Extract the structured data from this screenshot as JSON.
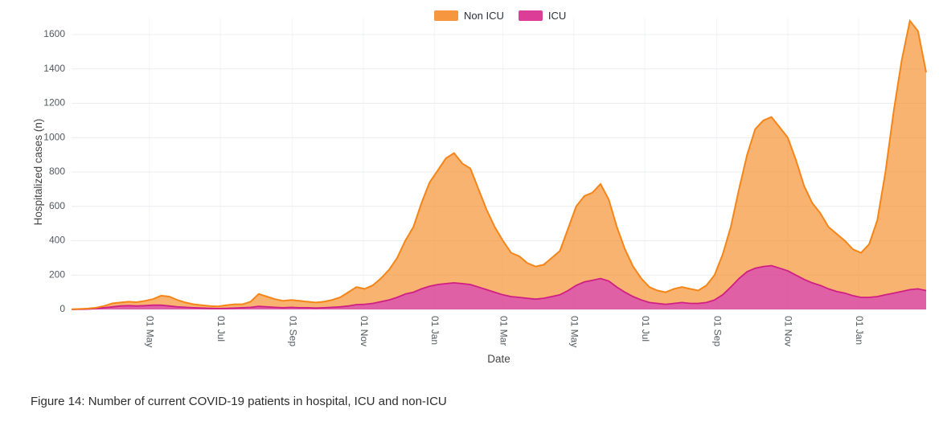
{
  "figure": {
    "caption": "Figure 14: Number of current COVID-19 patients in hospital, ICU and non-ICU"
  },
  "chart_data": {
    "type": "area",
    "stacked": true,
    "title": "",
    "xlabel": "Date",
    "ylabel": "Hospitalized cases (n)",
    "ylim": [
      0,
      1600
    ],
    "yticks": [
      0,
      200,
      400,
      600,
      800,
      1000,
      1200,
      1400,
      1600
    ],
    "grid": true,
    "legend_position": "top-center",
    "axis_text_color": "#53585f",
    "axis_label_color": "#444444",
    "grid_color": "#eaecef",
    "vgrid_color": "#f2f3f5",
    "xticks": [
      {
        "date": "2020-05-01",
        "label": "01 May"
      },
      {
        "date": "2020-07-01",
        "label": "01 Jul"
      },
      {
        "date": "2020-09-01",
        "label": "01 Sep"
      },
      {
        "date": "2020-11-01",
        "label": "01 Nov"
      },
      {
        "date": "2021-01-01",
        "label": "01 Jan"
      },
      {
        "date": "2021-03-01",
        "label": "01 Mar"
      },
      {
        "date": "2021-05-01",
        "label": "01 May"
      },
      {
        "date": "2021-07-01",
        "label": "01 Jul"
      },
      {
        "date": "2021-09-01",
        "label": "01 Sep"
      },
      {
        "date": "2021-11-01",
        "label": "01 Nov"
      },
      {
        "date": "2022-01-01",
        "label": "01 Jan"
      }
    ],
    "x": [
      "2020-02-24",
      "2020-03-02",
      "2020-03-09",
      "2020-03-16",
      "2020-03-23",
      "2020-03-30",
      "2020-04-06",
      "2020-04-13",
      "2020-04-20",
      "2020-04-27",
      "2020-05-04",
      "2020-05-11",
      "2020-05-18",
      "2020-05-25",
      "2020-06-01",
      "2020-06-08",
      "2020-06-15",
      "2020-06-22",
      "2020-06-29",
      "2020-07-06",
      "2020-07-13",
      "2020-07-20",
      "2020-07-27",
      "2020-08-03",
      "2020-08-10",
      "2020-08-17",
      "2020-08-24",
      "2020-08-31",
      "2020-09-07",
      "2020-09-14",
      "2020-09-21",
      "2020-09-28",
      "2020-10-05",
      "2020-10-12",
      "2020-10-19",
      "2020-10-26",
      "2020-11-02",
      "2020-11-09",
      "2020-11-16",
      "2020-11-23",
      "2020-11-30",
      "2020-12-07",
      "2020-12-14",
      "2020-12-21",
      "2020-12-28",
      "2021-01-04",
      "2021-01-11",
      "2021-01-18",
      "2021-01-25",
      "2021-02-01",
      "2021-02-08",
      "2021-02-15",
      "2021-02-22",
      "2021-03-01",
      "2021-03-08",
      "2021-03-15",
      "2021-03-22",
      "2021-03-29",
      "2021-04-05",
      "2021-04-12",
      "2021-04-19",
      "2021-04-26",
      "2021-05-03",
      "2021-05-10",
      "2021-05-17",
      "2021-05-24",
      "2021-05-31",
      "2021-06-07",
      "2021-06-14",
      "2021-06-21",
      "2021-06-28",
      "2021-07-05",
      "2021-07-12",
      "2021-07-19",
      "2021-07-26",
      "2021-08-02",
      "2021-08-09",
      "2021-08-16",
      "2021-08-23",
      "2021-08-30",
      "2021-09-06",
      "2021-09-13",
      "2021-09-20",
      "2021-09-27",
      "2021-10-04",
      "2021-10-11",
      "2021-10-18",
      "2021-10-25",
      "2021-11-01",
      "2021-11-08",
      "2021-11-15",
      "2021-11-22",
      "2021-11-29",
      "2021-12-06",
      "2021-12-13",
      "2021-12-20",
      "2021-12-27",
      "2022-01-03",
      "2022-01-10",
      "2022-01-17",
      "2022-01-24",
      "2022-01-31",
      "2022-02-07",
      "2022-02-14",
      "2022-02-21",
      "2022-02-28"
    ],
    "series": [
      {
        "name": "Non ICU",
        "line_color": "#f58518",
        "fill_color": "rgba(245,133,24,0.62)",
        "legend_color": "#f6963f",
        "values": [
          1,
          2,
          3,
          5,
          10,
          20,
          20,
          23,
          22,
          28,
          35,
          55,
          55,
          40,
          28,
          20,
          17,
          14,
          13,
          19,
          22,
          20,
          33,
          72,
          60,
          48,
          40,
          43,
          40,
          35,
          32,
          35,
          43,
          55,
          80,
          102,
          90,
          105,
          135,
          175,
          230,
          310,
          380,
          500,
          605,
          665,
          730,
          755,
          700,
          675,
          570,
          465,
          380,
          315,
          255,
          240,
          205,
          190,
          195,
          225,
          255,
          360,
          460,
          500,
          510,
          550,
          475,
          350,
          250,
          175,
          125,
          90,
          75,
          70,
          85,
          90,
          85,
          75,
          100,
          145,
          235,
          350,
          520,
          680,
          810,
          850,
          865,
          820,
          775,
          670,
          545,
          465,
          420,
          360,
          335,
          305,
          270,
          260,
          310,
          445,
          715,
          1055,
          1345,
          1565,
          1500,
          1270
        ]
      },
      {
        "name": "ICU",
        "line_color": "#d01f84",
        "fill_color": "rgba(216,56,142,0.80)",
        "legend_color": "#dc3e97",
        "values": [
          0,
          1,
          2,
          5,
          10,
          15,
          20,
          22,
          20,
          22,
          25,
          25,
          20,
          15,
          12,
          10,
          8,
          6,
          5,
          6,
          8,
          10,
          12,
          18,
          15,
          12,
          10,
          12,
          10,
          10,
          8,
          10,
          12,
          15,
          20,
          28,
          30,
          35,
          45,
          55,
          70,
          90,
          100,
          120,
          135,
          145,
          150,
          155,
          150,
          145,
          130,
          115,
          100,
          85,
          75,
          70,
          65,
          60,
          65,
          75,
          85,
          110,
          140,
          160,
          170,
          180,
          165,
          130,
          100,
          75,
          55,
          40,
          35,
          30,
          35,
          40,
          35,
          35,
          40,
          55,
          85,
          130,
          180,
          220,
          240,
          250,
          255,
          240,
          225,
          200,
          175,
          155,
          140,
          120,
          105,
          95,
          80,
          70,
          70,
          75,
          85,
          95,
          105,
          115,
          120,
          110
        ]
      }
    ]
  }
}
